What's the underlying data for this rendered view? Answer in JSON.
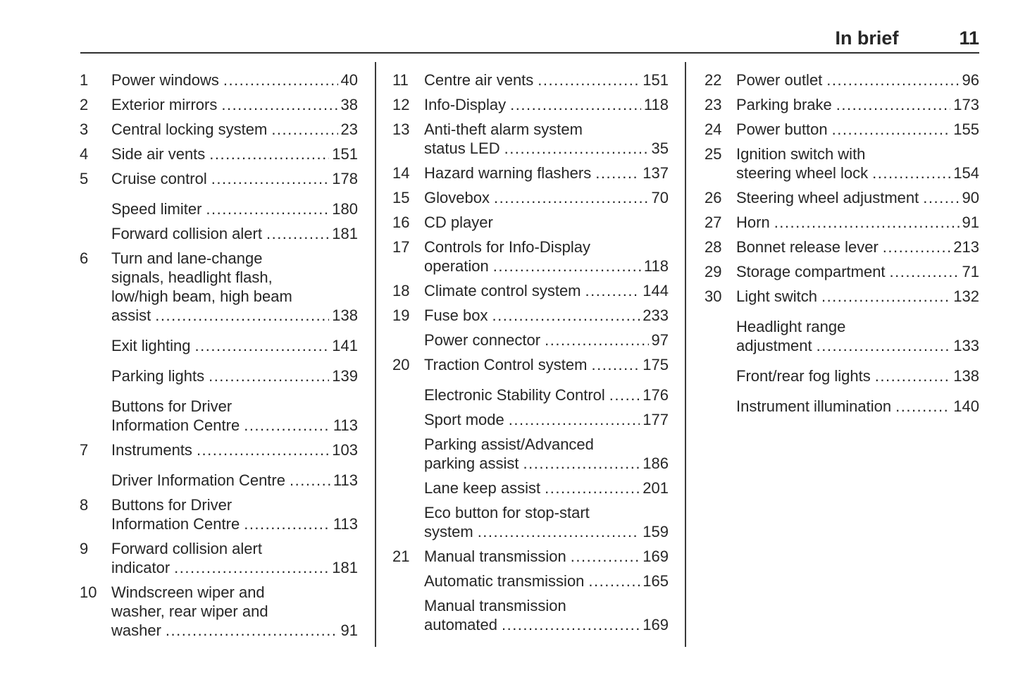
{
  "header": {
    "title": "In brief",
    "page": "11"
  },
  "columns": [
    {
      "entries": [
        {
          "num": "1",
          "lines": [
            "Power windows"
          ],
          "page": "40"
        },
        {
          "num": "2",
          "lines": [
            "Exterior mirrors"
          ],
          "page": "38"
        },
        {
          "num": "3",
          "lines": [
            "Central locking system"
          ],
          "page": "23"
        },
        {
          "num": "4",
          "lines": [
            "Side air vents"
          ],
          "page": "151"
        },
        {
          "num": "5",
          "lines": [
            "Cruise control"
          ],
          "page": "178"
        },
        {
          "num": "",
          "lines": [
            "Speed limiter"
          ],
          "page": "180",
          "gap": true
        },
        {
          "num": "",
          "lines": [
            "Forward collision alert"
          ],
          "page": "181"
        },
        {
          "num": "6",
          "lines": [
            "Turn and lane-change",
            "signals, headlight flash,",
            "low/high beam, high beam",
            "assist"
          ],
          "page": "138"
        },
        {
          "num": "",
          "lines": [
            "Exit lighting"
          ],
          "page": "141",
          "gap": true
        },
        {
          "num": "",
          "lines": [
            "Parking lights"
          ],
          "page": "139",
          "gap": true
        },
        {
          "num": "",
          "lines": [
            "Buttons for Driver",
            "Information Centre"
          ],
          "page": "113",
          "gap": true
        },
        {
          "num": "7",
          "lines": [
            "Instruments"
          ],
          "page": "103"
        },
        {
          "num": "",
          "lines": [
            "Driver Information Centre"
          ],
          "page": "113",
          "gap": true
        },
        {
          "num": "8",
          "lines": [
            "Buttons for Driver",
            "Information Centre"
          ],
          "page": "113"
        },
        {
          "num": "9",
          "lines": [
            "Forward collision alert",
            "indicator"
          ],
          "page": "181"
        },
        {
          "num": "10",
          "lines": [
            "Windscreen wiper and",
            "washer, rear wiper and",
            "washer"
          ],
          "page": "91"
        }
      ]
    },
    {
      "entries": [
        {
          "num": "11",
          "lines": [
            "Centre air vents"
          ],
          "page": "151"
        },
        {
          "num": "12",
          "lines": [
            "Info-Display"
          ],
          "page": "118"
        },
        {
          "num": "13",
          "lines": [
            "Anti-theft alarm system",
            "status LED"
          ],
          "page": "35"
        },
        {
          "num": "14",
          "lines": [
            "Hazard warning flashers"
          ],
          "page": "137"
        },
        {
          "num": "15",
          "lines": [
            "Glovebox"
          ],
          "page": "70"
        },
        {
          "num": "16",
          "lines": [
            "CD player"
          ],
          "page": ""
        },
        {
          "num": "17",
          "lines": [
            "Controls for Info-Display",
            "operation"
          ],
          "page": "118"
        },
        {
          "num": "18",
          "lines": [
            "Climate control system"
          ],
          "page": "144"
        },
        {
          "num": "19",
          "lines": [
            "Fuse box"
          ],
          "page": "233"
        },
        {
          "num": "",
          "lines": [
            "Power connector"
          ],
          "page": "97"
        },
        {
          "num": "20",
          "lines": [
            "Traction Control system"
          ],
          "page": "175"
        },
        {
          "num": "",
          "lines": [
            "Electronic Stability Control"
          ],
          "page": "176",
          "gap": true
        },
        {
          "num": "",
          "lines": [
            "Sport mode"
          ],
          "page": "177"
        },
        {
          "num": "",
          "lines": [
            "Parking assist/Advanced",
            "parking assist"
          ],
          "page": "186"
        },
        {
          "num": "",
          "lines": [
            "Lane keep assist"
          ],
          "page": "201"
        },
        {
          "num": "",
          "lines": [
            "Eco button for stop-start",
            "system"
          ],
          "page": "159"
        },
        {
          "num": "21",
          "lines": [
            "Manual transmission"
          ],
          "page": "169"
        },
        {
          "num": "",
          "lines": [
            "Automatic transmission"
          ],
          "page": "165"
        },
        {
          "num": "",
          "lines": [
            "Manual transmission",
            "automated"
          ],
          "page": "169"
        }
      ]
    },
    {
      "entries": [
        {
          "num": "22",
          "lines": [
            "Power outlet"
          ],
          "page": "96"
        },
        {
          "num": "23",
          "lines": [
            "Parking brake"
          ],
          "page": "173"
        },
        {
          "num": "24",
          "lines": [
            "Power button"
          ],
          "page": "155"
        },
        {
          "num": "25",
          "lines": [
            "Ignition switch with",
            "steering wheel lock"
          ],
          "page": "154"
        },
        {
          "num": "26",
          "lines": [
            "Steering wheel adjustment"
          ],
          "page": "90"
        },
        {
          "num": "27",
          "lines": [
            "Horn"
          ],
          "page": "91"
        },
        {
          "num": "28",
          "lines": [
            "Bonnet release lever"
          ],
          "page": "213"
        },
        {
          "num": "29",
          "lines": [
            "Storage compartment"
          ],
          "page": "71"
        },
        {
          "num": "30",
          "lines": [
            "Light switch"
          ],
          "page": "132"
        },
        {
          "num": "",
          "lines": [
            "Headlight range",
            "adjustment"
          ],
          "page": "133",
          "gap": true
        },
        {
          "num": "",
          "lines": [
            "Front/rear fog lights"
          ],
          "page": "138",
          "gap": true
        },
        {
          "num": "",
          "lines": [
            "Instrument illumination"
          ],
          "page": "140",
          "gap": true
        }
      ]
    }
  ]
}
